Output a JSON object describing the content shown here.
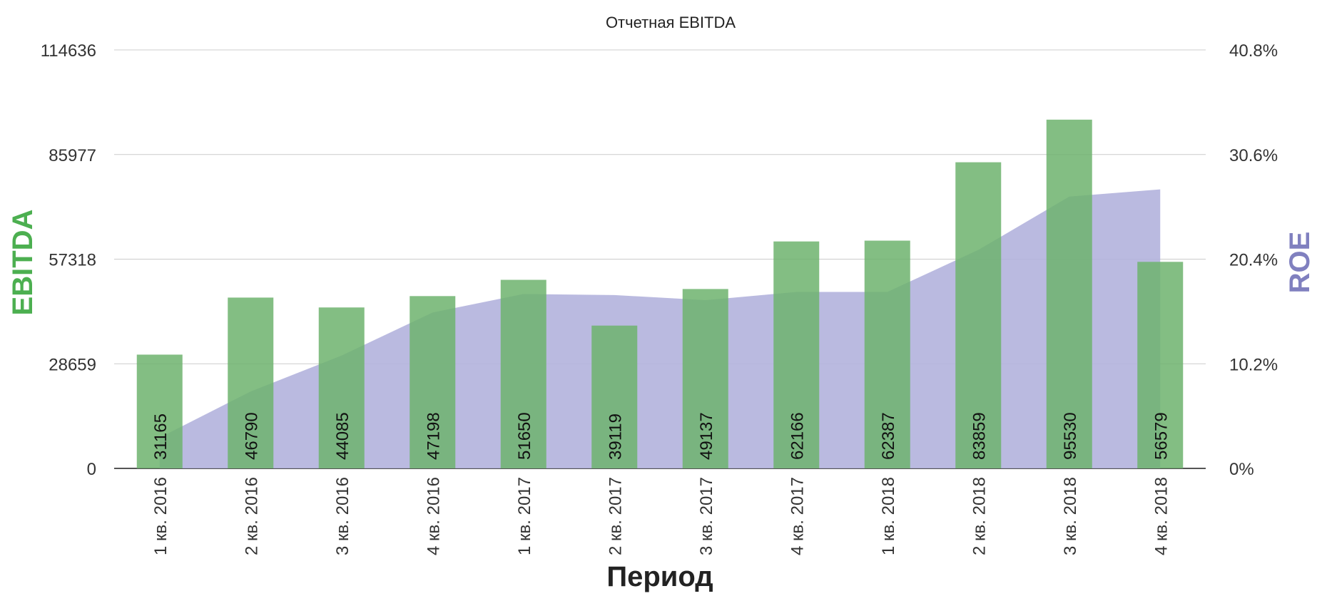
{
  "chart_data": {
    "type": "bar",
    "title": "Отчетная EBITDA",
    "xlabel": "Период",
    "ylabel_left": "EBITDA",
    "ylabel_right": "ROE",
    "categories": [
      "1 кв. 2016",
      "2 кв. 2016",
      "3 кв. 2016",
      "4 кв. 2016",
      "1 кв. 2017",
      "2 кв. 2017",
      "3 кв. 2017",
      "4 кв. 2017",
      "1 кв. 2018",
      "2 кв. 2018",
      "3 кв. 2018",
      "4 кв. 2018"
    ],
    "series": [
      {
        "name": "EBITDA",
        "type": "bar",
        "axis": "left",
        "color": "#6db36d",
        "values": [
          31165,
          46790,
          44085,
          47198,
          51650,
          39119,
          49137,
          62166,
          62387,
          83859,
          95530,
          56579
        ]
      },
      {
        "name": "ROE",
        "type": "area",
        "axis": "right",
        "color": "#b3b3dd",
        "values": [
          3.0,
          7.5,
          11.0,
          15.2,
          17.0,
          16.9,
          16.4,
          17.2,
          17.2,
          21.3,
          26.5,
          27.2
        ]
      }
    ],
    "left_axis": {
      "ylim": [
        0,
        114636
      ],
      "ticks": [
        "0",
        "28659",
        "57318",
        "85977",
        "114636"
      ]
    },
    "right_axis": {
      "ylim": [
        0,
        40.8
      ],
      "ticks": [
        "0%",
        "10.2%",
        "20.4%",
        "30.6%",
        "40.8%"
      ]
    },
    "grid": true,
    "legend": "none",
    "colors": {
      "ebitda_label": "#4caf50",
      "roe_label": "#8080bf",
      "grid": "#cccccc"
    }
  }
}
